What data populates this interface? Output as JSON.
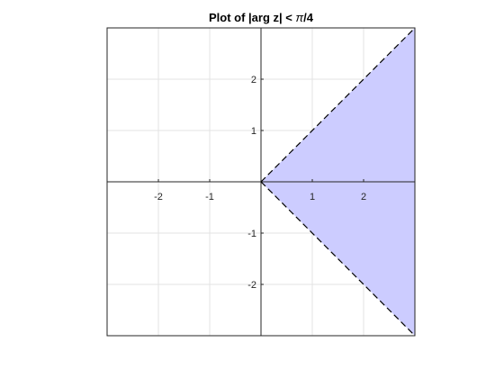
{
  "chart_data": {
    "type": "area",
    "title": "Plot of |arg z| < π/4",
    "title_parts": {
      "prefix": "Plot of |arg z| < ",
      "pi": "π",
      "suffix": "/4"
    },
    "xlim": [
      -3,
      3
    ],
    "ylim": [
      -3,
      3
    ],
    "x_ticks": [
      -2,
      -1,
      1,
      2
    ],
    "x_tick_labels": [
      "-2",
      "-1",
      "1",
      "2"
    ],
    "y_ticks": [
      2,
      1,
      -1,
      -2
    ],
    "y_tick_labels": [
      "2",
      "1",
      "-1",
      "-2"
    ],
    "grid": true,
    "axes_through_origin": true,
    "region": {
      "description_vertices": [
        [
          0,
          0
        ],
        [
          3,
          3
        ],
        [
          3,
          -3
        ]
      ],
      "fill_color": "#ccccff"
    },
    "boundary_lines": [
      {
        "x": [
          0,
          3
        ],
        "y": [
          0,
          3
        ],
        "style": "dashed",
        "color": "#000000"
      },
      {
        "x": [
          0,
          3
        ],
        "y": [
          0,
          -3
        ],
        "style": "dashed",
        "color": "#000000"
      }
    ],
    "colors": {
      "grid": "#e3e3e3",
      "axis": "#262626",
      "frame": "#262626"
    }
  }
}
